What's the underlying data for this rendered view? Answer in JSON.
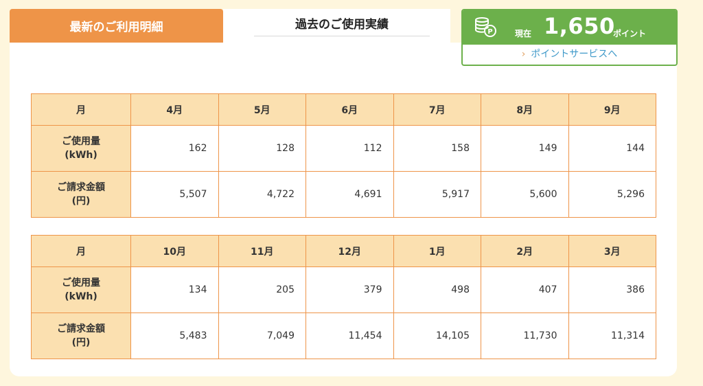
{
  "tabs": {
    "latest": "最新のご利用明細",
    "history": "過去のご使用実績"
  },
  "points": {
    "prefix": "現在",
    "value": "1,650",
    "unit": "ポイント",
    "link": "ポイントサービスへ",
    "accent": "#6cb04b"
  },
  "labels": {
    "month": "月",
    "usage_l1": "ご使用量",
    "usage_l2": "(kWh)",
    "bill_l1": "ご請求金額",
    "bill_l2": "(円)"
  },
  "table1": {
    "months": [
      "4月",
      "5月",
      "6月",
      "7月",
      "8月",
      "9月"
    ],
    "usage": [
      "162",
      "128",
      "112",
      "158",
      "149",
      "144"
    ],
    "bill": [
      "5,507",
      "4,722",
      "4,691",
      "5,917",
      "5,600",
      "5,296"
    ]
  },
  "table2": {
    "months": [
      "10月",
      "11月",
      "12月",
      "1月",
      "2月",
      "3月"
    ],
    "usage": [
      "134",
      "205",
      "379",
      "498",
      "407",
      "386"
    ],
    "bill": [
      "5,483",
      "7,049",
      "11,454",
      "14,105",
      "11,730",
      "11,314"
    ]
  },
  "colors": {
    "tab_active": "#ee9448",
    "header_fill": "#fbe0b0",
    "border": "#ee9448",
    "background": "#fef6dd"
  }
}
